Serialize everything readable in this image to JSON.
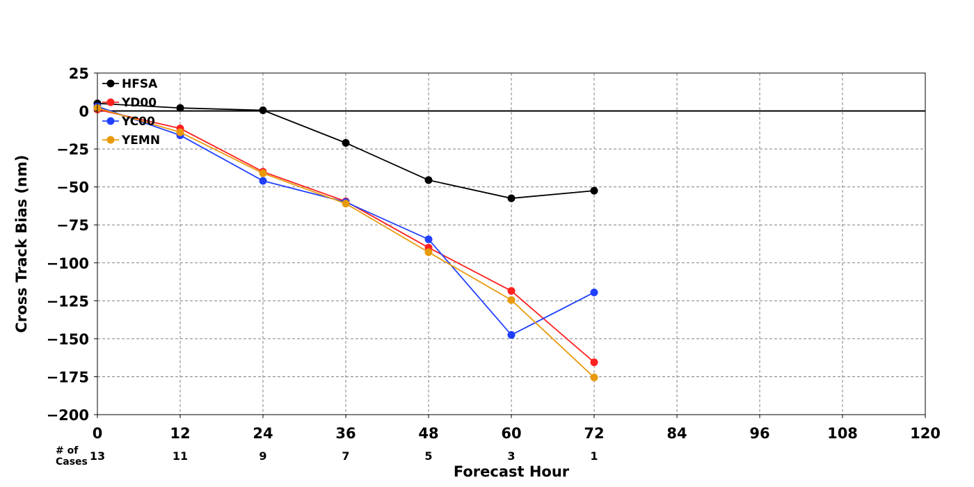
{
  "chart_data": {
    "type": "line",
    "xlabel": "Forecast Hour",
    "ylabel": "Cross Track Bias (nm)",
    "xlim": [
      0,
      120
    ],
    "ylim": [
      -200,
      25
    ],
    "x_ticks": [
      "0",
      "12",
      "24",
      "36",
      "48",
      "60",
      "72",
      "84",
      "96",
      "108",
      "120"
    ],
    "y_ticks": [
      "25",
      "0",
      "−25",
      "−50",
      "−75",
      "−100",
      "−125",
      "−150",
      "−175",
      "−200"
    ],
    "grid": true,
    "zero_line": true,
    "legend_position": "top-left",
    "series": [
      {
        "name": "HFSA",
        "color": "#000000",
        "x": [
          0,
          12,
          24,
          36,
          48,
          60,
          72
        ],
        "y": [
          5,
          2,
          0.5,
          -21,
          -45.5,
          -57.5,
          -52.5
        ]
      },
      {
        "name": "YD00",
        "color": "#ff2020",
        "x": [
          0,
          12,
          24,
          36,
          48,
          60,
          72
        ],
        "y": [
          1,
          -11.5,
          -40,
          -59.5,
          -90,
          -118.5,
          -165.5
        ]
      },
      {
        "name": "YC00",
        "color": "#2040ff",
        "x": [
          0,
          12,
          24,
          36,
          48,
          60,
          72
        ],
        "y": [
          3,
          -16,
          -46,
          -60,
          -84.5,
          -147.5,
          -119.5
        ]
      },
      {
        "name": "YEMN",
        "color": "#e89a0c",
        "x": [
          0,
          12,
          24,
          36,
          48,
          60,
          72
        ],
        "y": [
          2,
          -14,
          -41,
          -61,
          -93,
          -124.5,
          -175.5
        ]
      }
    ],
    "cases": {
      "label_line1": "# of",
      "label_line2": "Cases",
      "x": [
        0,
        12,
        24,
        36,
        48,
        60,
        72
      ],
      "counts": [
        "13",
        "11",
        "9",
        "7",
        "5",
        "3",
        "1"
      ]
    }
  }
}
